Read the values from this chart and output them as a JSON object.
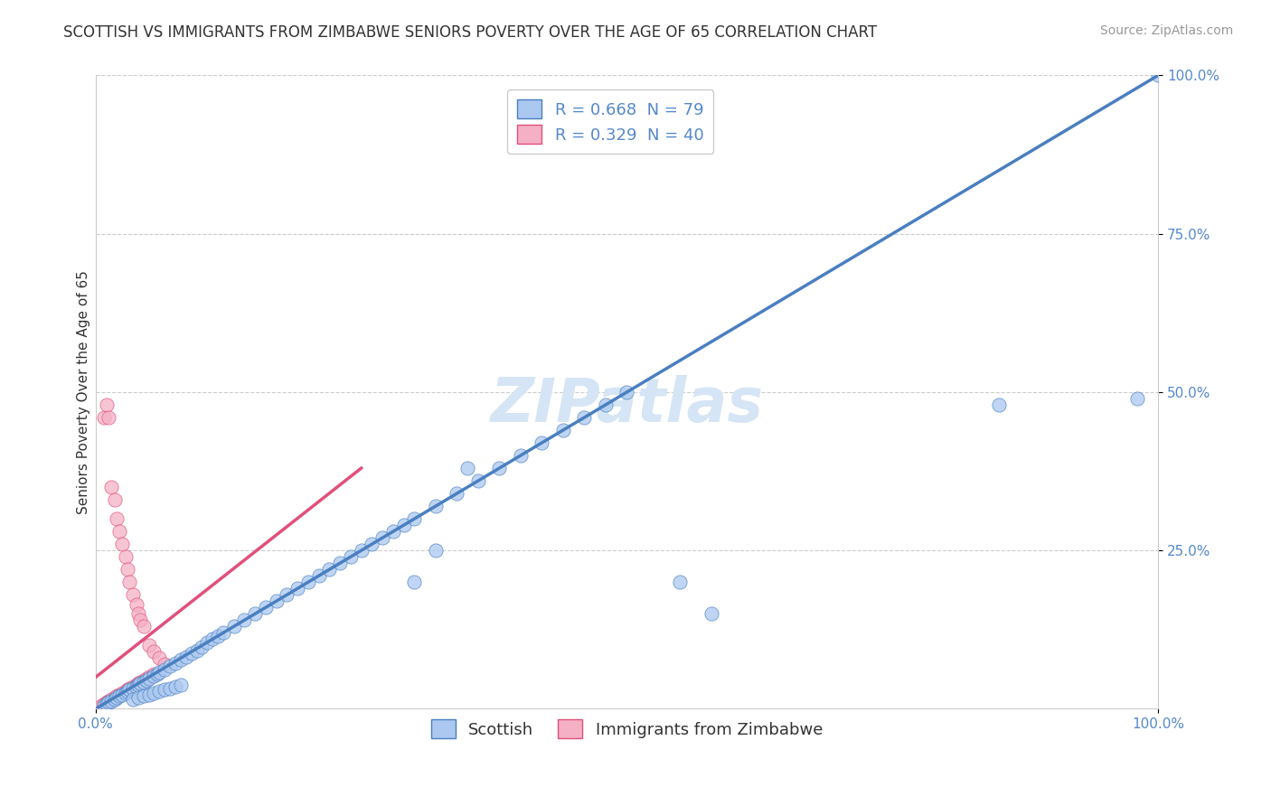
{
  "title": "SCOTTISH VS IMMIGRANTS FROM ZIMBABWE SENIORS POVERTY OVER THE AGE OF 65 CORRELATION CHART",
  "source": "Source: ZipAtlas.com",
  "ylabel": "Seniors Poverty Over the Age of 65",
  "xlim": [
    0,
    1.0
  ],
  "ylim": [
    0,
    1.0
  ],
  "legend1_label": "R = 0.668  N = 79",
  "legend2_label": "R = 0.329  N = 40",
  "scottish_color": "#aac8f0",
  "zimbabwe_color": "#f5b0c5",
  "scottish_line_color": "#4a7fc0",
  "zimbabwe_line_color": "#e0507a",
  "watermark": "ZIPatlas",
  "scottish_x": [
    0.008,
    0.01,
    0.012,
    0.015,
    0.018,
    0.02,
    0.022,
    0.025,
    0.028,
    0.03,
    0.032,
    0.035,
    0.038,
    0.04,
    0.042,
    0.045,
    0.048,
    0.05,
    0.055,
    0.058,
    0.06,
    0.065,
    0.07,
    0.075,
    0.08,
    0.085,
    0.09,
    0.095,
    0.1,
    0.105,
    0.11,
    0.115,
    0.12,
    0.13,
    0.14,
    0.15,
    0.16,
    0.17,
    0.18,
    0.19,
    0.2,
    0.21,
    0.22,
    0.23,
    0.24,
    0.25,
    0.26,
    0.27,
    0.28,
    0.29,
    0.3,
    0.32,
    0.34,
    0.36,
    0.38,
    0.4,
    0.42,
    0.44,
    0.46,
    0.48,
    0.035,
    0.04,
    0.045,
    0.05,
    0.055,
    0.06,
    0.065,
    0.07,
    0.075,
    0.08,
    0.3,
    0.32,
    0.35,
    0.55,
    0.58,
    0.85,
    0.98,
    1.0,
    0.5
  ],
  "scottish_y": [
    0.005,
    0.008,
    0.01,
    0.012,
    0.015,
    0.018,
    0.02,
    0.022,
    0.025,
    0.028,
    0.03,
    0.032,
    0.035,
    0.038,
    0.04,
    0.042,
    0.045,
    0.048,
    0.052,
    0.055,
    0.058,
    0.062,
    0.068,
    0.072,
    0.078,
    0.082,
    0.088,
    0.092,
    0.098,
    0.105,
    0.11,
    0.115,
    0.12,
    0.13,
    0.14,
    0.15,
    0.16,
    0.17,
    0.18,
    0.19,
    0.2,
    0.21,
    0.22,
    0.23,
    0.24,
    0.25,
    0.26,
    0.27,
    0.28,
    0.29,
    0.3,
    0.32,
    0.34,
    0.36,
    0.38,
    0.4,
    0.42,
    0.44,
    0.46,
    0.48,
    0.015,
    0.018,
    0.02,
    0.022,
    0.025,
    0.028,
    0.03,
    0.032,
    0.035,
    0.038,
    0.2,
    0.25,
    0.38,
    0.2,
    0.15,
    0.48,
    0.49,
    1.0,
    0.5
  ],
  "zimbabwe_x": [
    0.005,
    0.008,
    0.01,
    0.012,
    0.015,
    0.018,
    0.02,
    0.022,
    0.025,
    0.028,
    0.03,
    0.032,
    0.035,
    0.038,
    0.04,
    0.042,
    0.045,
    0.048,
    0.05,
    0.055,
    0.008,
    0.01,
    0.012,
    0.015,
    0.018,
    0.02,
    0.022,
    0.025,
    0.028,
    0.03,
    0.032,
    0.035,
    0.038,
    0.04,
    0.042,
    0.045,
    0.05,
    0.055,
    0.06,
    0.065
  ],
  "zimbabwe_y": [
    0.005,
    0.008,
    0.01,
    0.012,
    0.015,
    0.018,
    0.02,
    0.022,
    0.025,
    0.028,
    0.03,
    0.032,
    0.035,
    0.038,
    0.04,
    0.042,
    0.045,
    0.048,
    0.05,
    0.055,
    0.46,
    0.48,
    0.46,
    0.35,
    0.33,
    0.3,
    0.28,
    0.26,
    0.24,
    0.22,
    0.2,
    0.18,
    0.165,
    0.15,
    0.14,
    0.13,
    0.1,
    0.09,
    0.08,
    0.07
  ],
  "grid_color": "#cccccc",
  "background_color": "#ffffff",
  "title_fontsize": 12,
  "axis_label_fontsize": 11,
  "tick_fontsize": 11,
  "legend_fontsize": 13,
  "watermark_fontsize": 48,
  "watermark_color": "#d5e5f5",
  "source_fontsize": 10,
  "scottish_trendline_x": [
    0.0,
    1.0
  ],
  "scottish_trendline_y": [
    0.0,
    1.0
  ],
  "zimbabwe_trendline_x": [
    0.0,
    0.25
  ],
  "zimbabwe_trendline_y": [
    0.05,
    0.38
  ]
}
